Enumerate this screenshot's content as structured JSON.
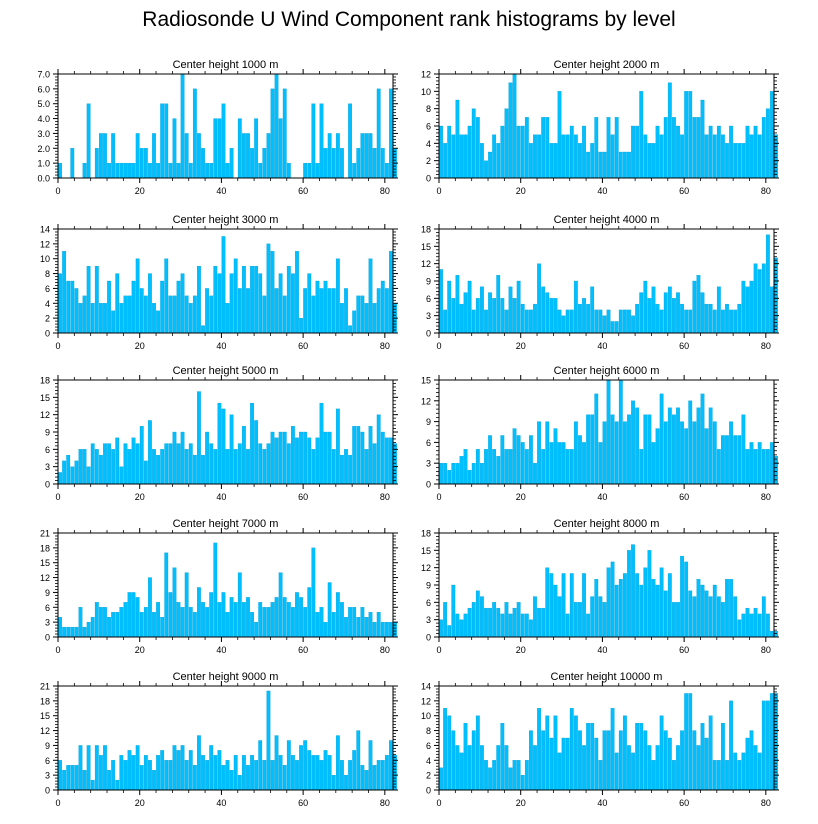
{
  "title": "Radiosonde U Wind Component rank histograms by level",
  "colors": {
    "bar": "#00BFFF",
    "bar_edge": "#0098cc",
    "axis": "#000000"
  },
  "chart_data": [
    {
      "type": "bar",
      "title": "Center height 1000 m",
      "xlim": [
        0,
        82
      ],
      "ylim": [
        0,
        7
      ],
      "yticks": [
        0,
        1,
        2,
        3,
        4,
        5,
        6,
        7
      ],
      "ytick_labels": [
        "0.0",
        "1.0",
        "2.0",
        "3.0",
        "4.0",
        "5.0",
        "6.0",
        "7.0"
      ],
      "xticks": [
        0,
        20,
        40,
        60,
        80
      ],
      "values": [
        1,
        0,
        0,
        2,
        0,
        0,
        1,
        5,
        0,
        2,
        3,
        3,
        1,
        3,
        1,
        1,
        1,
        1,
        1,
        3,
        2,
        2,
        1,
        3,
        1,
        5,
        5,
        1,
        4,
        1,
        7,
        3,
        1,
        6,
        3,
        2,
        1,
        1,
        4,
        4,
        5,
        1,
        2,
        0,
        4,
        3,
        3,
        2,
        4,
        1,
        2,
        3,
        6,
        7,
        4,
        6,
        1,
        0,
        0,
        0,
        1,
        1,
        5,
        1,
        5,
        2,
        3,
        2,
        3,
        2,
        0,
        5,
        1,
        2,
        3,
        3,
        3,
        2,
        6,
        2,
        1,
        6,
        2
      ]
    },
    {
      "type": "bar",
      "title": "Center height 2000 m",
      "xlim": [
        0,
        82
      ],
      "ylim": [
        0,
        12
      ],
      "yticks": [
        0,
        2,
        4,
        6,
        8,
        10,
        12
      ],
      "ytick_labels": [
        "0",
        "2",
        "4",
        "6",
        "8",
        "10",
        "12"
      ],
      "xticks": [
        0,
        20,
        40,
        60,
        80
      ],
      "values": [
        6,
        4,
        6,
        5,
        9,
        5,
        5,
        6,
        8,
        7,
        4,
        2,
        3,
        5,
        4,
        6,
        8,
        11,
        12,
        6,
        6,
        7,
        4,
        5,
        5,
        7,
        7,
        4,
        4,
        10,
        5,
        5,
        6,
        5,
        4,
        6,
        3,
        4,
        7,
        3,
        3,
        7,
        5,
        7,
        3,
        3,
        3,
        6,
        6,
        10,
        5,
        4,
        4,
        6,
        5,
        7,
        11,
        7,
        6,
        5,
        10,
        10,
        7,
        7,
        9,
        5,
        6,
        5,
        6,
        5,
        4,
        6,
        4,
        4,
        4,
        6,
        5,
        6,
        5,
        7,
        8,
        10,
        5
      ]
    },
    {
      "type": "bar",
      "title": "Center height 3000 m",
      "xlim": [
        0,
        82
      ],
      "ylim": [
        0,
        14
      ],
      "yticks": [
        0,
        2,
        4,
        6,
        8,
        10,
        12,
        14
      ],
      "ytick_labels": [
        "0",
        "2",
        "4",
        "6",
        "8",
        "10",
        "12",
        "14"
      ],
      "xticks": [
        0,
        20,
        40,
        60,
        80
      ],
      "values": [
        8,
        11,
        7,
        7,
        6,
        4,
        5,
        9,
        4,
        9,
        4,
        4,
        7,
        3,
        8,
        4,
        5,
        5,
        7,
        10,
        6,
        5,
        8,
        4,
        3,
        7,
        10,
        5,
        5,
        7,
        8,
        5,
        4,
        5,
        9,
        1,
        6,
        5,
        9,
        8,
        13,
        4,
        8,
        10,
        6,
        9,
        6,
        9,
        9,
        8,
        5,
        12,
        11,
        6,
        8,
        5,
        9,
        8,
        11,
        2,
        6,
        8,
        5,
        7,
        6,
        7,
        6,
        6,
        10,
        4,
        6,
        1,
        3,
        5,
        5,
        4,
        10,
        4,
        6,
        7,
        6,
        11,
        4
      ]
    },
    {
      "type": "bar",
      "title": "Center height 4000 m",
      "xlim": [
        0,
        82
      ],
      "ylim": [
        0,
        18
      ],
      "yticks": [
        0,
        3,
        6,
        9,
        12,
        15,
        18
      ],
      "ytick_labels": [
        "0",
        "3",
        "6",
        "9",
        "12",
        "15",
        "18"
      ],
      "xticks": [
        0,
        20,
        40,
        60,
        80
      ],
      "values": [
        11,
        4,
        9,
        6,
        10,
        5,
        7,
        9,
        4,
        6,
        8,
        4,
        7,
        6,
        10,
        6,
        4,
        8,
        6,
        9,
        5,
        4,
        4,
        5,
        12,
        8,
        7,
        6,
        6,
        4,
        3,
        4,
        4,
        9,
        5,
        6,
        5,
        8,
        4,
        4,
        3,
        4,
        2,
        2,
        4,
        4,
        4,
        3,
        5,
        7,
        9,
        6,
        8,
        5,
        4,
        7,
        8,
        6,
        7,
        5,
        4,
        4,
        9,
        10,
        7,
        5,
        5,
        4,
        8,
        4,
        5,
        4,
        4,
        5,
        9,
        8,
        9,
        12,
        11,
        12,
        17,
        8,
        13
      ]
    },
    {
      "type": "bar",
      "title": "Center height 5000 m",
      "xlim": [
        0,
        82
      ],
      "ylim": [
        0,
        18
      ],
      "yticks": [
        0,
        3,
        6,
        9,
        12,
        15,
        18
      ],
      "ytick_labels": [
        "0",
        "3",
        "6",
        "9",
        "12",
        "15",
        "18"
      ],
      "xticks": [
        0,
        20,
        40,
        60,
        80
      ],
      "values": [
        2,
        4,
        5,
        3,
        4,
        6,
        6,
        3,
        7,
        6,
        5,
        7,
        7,
        6,
        8,
        3,
        7,
        6,
        8,
        7,
        10,
        4,
        11,
        6,
        5,
        6,
        7,
        7,
        9,
        7,
        9,
        6,
        7,
        5,
        16,
        5,
        9,
        7,
        6,
        14,
        13,
        6,
        12,
        6,
        7,
        10,
        6,
        14,
        11,
        7,
        6,
        7,
        9,
        8,
        9,
        9,
        7,
        10,
        8,
        9,
        9,
        8,
        6,
        8,
        14,
        9,
        9,
        6,
        13,
        5,
        6,
        5,
        10,
        10,
        9,
        6,
        10,
        7,
        12,
        9,
        8,
        8,
        7
      ]
    },
    {
      "type": "bar",
      "title": "Center height 6000 m",
      "xlim": [
        0,
        82
      ],
      "ylim": [
        0,
        15
      ],
      "yticks": [
        0,
        3,
        6,
        9,
        12,
        15
      ],
      "ytick_labels": [
        "0",
        "3",
        "6",
        "9",
        "12",
        "15"
      ],
      "xticks": [
        0,
        20,
        40,
        60,
        80
      ],
      "values": [
        3,
        3,
        2,
        3,
        3,
        4,
        5,
        2,
        3,
        5,
        3,
        5,
        7,
        5,
        4,
        7,
        5,
        5,
        8,
        7,
        6,
        5,
        7,
        3,
        9,
        5,
        9,
        6,
        8,
        6,
        6,
        5,
        5,
        9,
        7,
        6,
        10,
        10,
        13,
        6,
        9,
        15,
        10,
        9,
        15,
        9,
        10,
        12,
        11,
        5,
        10,
        10,
        6,
        8,
        13,
        9,
        11,
        10,
        11,
        9,
        8,
        12,
        9,
        11,
        13,
        8,
        11,
        9,
        5,
        7,
        7,
        9,
        7,
        7,
        10,
        5,
        6,
        5,
        6,
        5,
        5,
        6,
        4
      ]
    },
    {
      "type": "bar",
      "title": "Center height 7000 m",
      "xlim": [
        0,
        82
      ],
      "ylim": [
        0,
        21
      ],
      "yticks": [
        0,
        3,
        6,
        9,
        12,
        15,
        18,
        21
      ],
      "ytick_labels": [
        "0",
        "3",
        "6",
        "9",
        "12",
        "15",
        "18",
        "21"
      ],
      "xticks": [
        0,
        20,
        40,
        60,
        80
      ],
      "values": [
        4,
        2,
        2,
        2,
        2,
        6,
        2,
        3,
        4,
        7,
        6,
        6,
        4,
        5,
        5,
        6,
        7,
        9,
        9,
        8,
        5,
        6,
        12,
        5,
        7,
        4,
        17,
        9,
        14,
        7,
        6,
        13,
        6,
        5,
        10,
        7,
        6,
        9,
        19,
        7,
        9,
        5,
        8,
        7,
        13,
        7,
        8,
        5,
        3,
        7,
        6,
        6,
        7,
        8,
        13,
        8,
        7,
        6,
        9,
        8,
        6,
        10,
        18,
        5,
        6,
        3,
        11,
        5,
        9,
        7,
        4,
        6,
        6,
        4,
        6,
        4,
        5,
        3,
        5,
        3,
        3,
        3,
        3
      ]
    },
    {
      "type": "bar",
      "title": "Center height 8000 m",
      "xlim": [
        0,
        82
      ],
      "ylim": [
        0,
        18
      ],
      "yticks": [
        0,
        3,
        6,
        9,
        12,
        15,
        18
      ],
      "ytick_labels": [
        "0",
        "3",
        "6",
        "9",
        "12",
        "15",
        "18"
      ],
      "xticks": [
        0,
        20,
        40,
        60,
        80
      ],
      "values": [
        3,
        6,
        2,
        9,
        4,
        3,
        4,
        5,
        6,
        8,
        7,
        5,
        5,
        6,
        5,
        4,
        6,
        4,
        5,
        6,
        4,
        4,
        3,
        7,
        5,
        5,
        12,
        11,
        9,
        7,
        11,
        4,
        11,
        6,
        6,
        11,
        4,
        7,
        10,
        7,
        6,
        12,
        13,
        9,
        10,
        11,
        15,
        16,
        11,
        9,
        12,
        15,
        10,
        9,
        12,
        8,
        11,
        6,
        6,
        14,
        13,
        8,
        7,
        10,
        9,
        8,
        7,
        9,
        7,
        6,
        10,
        10,
        7,
        3,
        4,
        5,
        4,
        5,
        4,
        7,
        4,
        1,
        1
      ]
    },
    {
      "type": "bar",
      "title": "Center height 9000 m",
      "xlim": [
        0,
        82
      ],
      "ylim": [
        0,
        21
      ],
      "yticks": [
        0,
        3,
        6,
        9,
        12,
        15,
        18,
        21
      ],
      "ytick_labels": [
        "0",
        "3",
        "6",
        "9",
        "12",
        "15",
        "18",
        "21"
      ],
      "xticks": [
        0,
        20,
        40,
        60,
        80
      ],
      "values": [
        6,
        4,
        5,
        5,
        5,
        9,
        4,
        9,
        2,
        9,
        7,
        9,
        4,
        6,
        2,
        7,
        6,
        8,
        7,
        9,
        5,
        7,
        6,
        4,
        7,
        8,
        6,
        6,
        9,
        8,
        9,
        6,
        8,
        5,
        11,
        7,
        6,
        9,
        7,
        8,
        5,
        6,
        4,
        7,
        3,
        7,
        5,
        7,
        6,
        10,
        6,
        20,
        6,
        11,
        7,
        5,
        10,
        7,
        6,
        9,
        10,
        8,
        7,
        7,
        6,
        8,
        7,
        3,
        11,
        6,
        3,
        6,
        8,
        12,
        5,
        4,
        10,
        5,
        6,
        6,
        7,
        10,
        7
      ]
    },
    {
      "type": "bar",
      "title": "Center height 10000 m",
      "xlim": [
        0,
        82
      ],
      "ylim": [
        0,
        14
      ],
      "yticks": [
        0,
        2,
        4,
        6,
        8,
        10,
        12,
        14
      ],
      "ytick_labels": [
        "0",
        "2",
        "4",
        "6",
        "8",
        "10",
        "12",
        "14"
      ],
      "xticks": [
        0,
        20,
        40,
        60,
        80
      ],
      "values": [
        3,
        11,
        10,
        8,
        6,
        5,
        9,
        6,
        8,
        10,
        6,
        4,
        3,
        4,
        6,
        9,
        6,
        3,
        4,
        4,
        2,
        4,
        8,
        6,
        11,
        8,
        10,
        7,
        10,
        5,
        7,
        7,
        11,
        10,
        8,
        6,
        9,
        9,
        7,
        4,
        8,
        8,
        11,
        5,
        8,
        10,
        6,
        5,
        9,
        9,
        8,
        6,
        4,
        6,
        10,
        8,
        7,
        4,
        6,
        8,
        13,
        13,
        8,
        6,
        9,
        7,
        10,
        4,
        4,
        9,
        4,
        12,
        5,
        4,
        5,
        7,
        8,
        6,
        5,
        12,
        12,
        13,
        13
      ]
    }
  ]
}
